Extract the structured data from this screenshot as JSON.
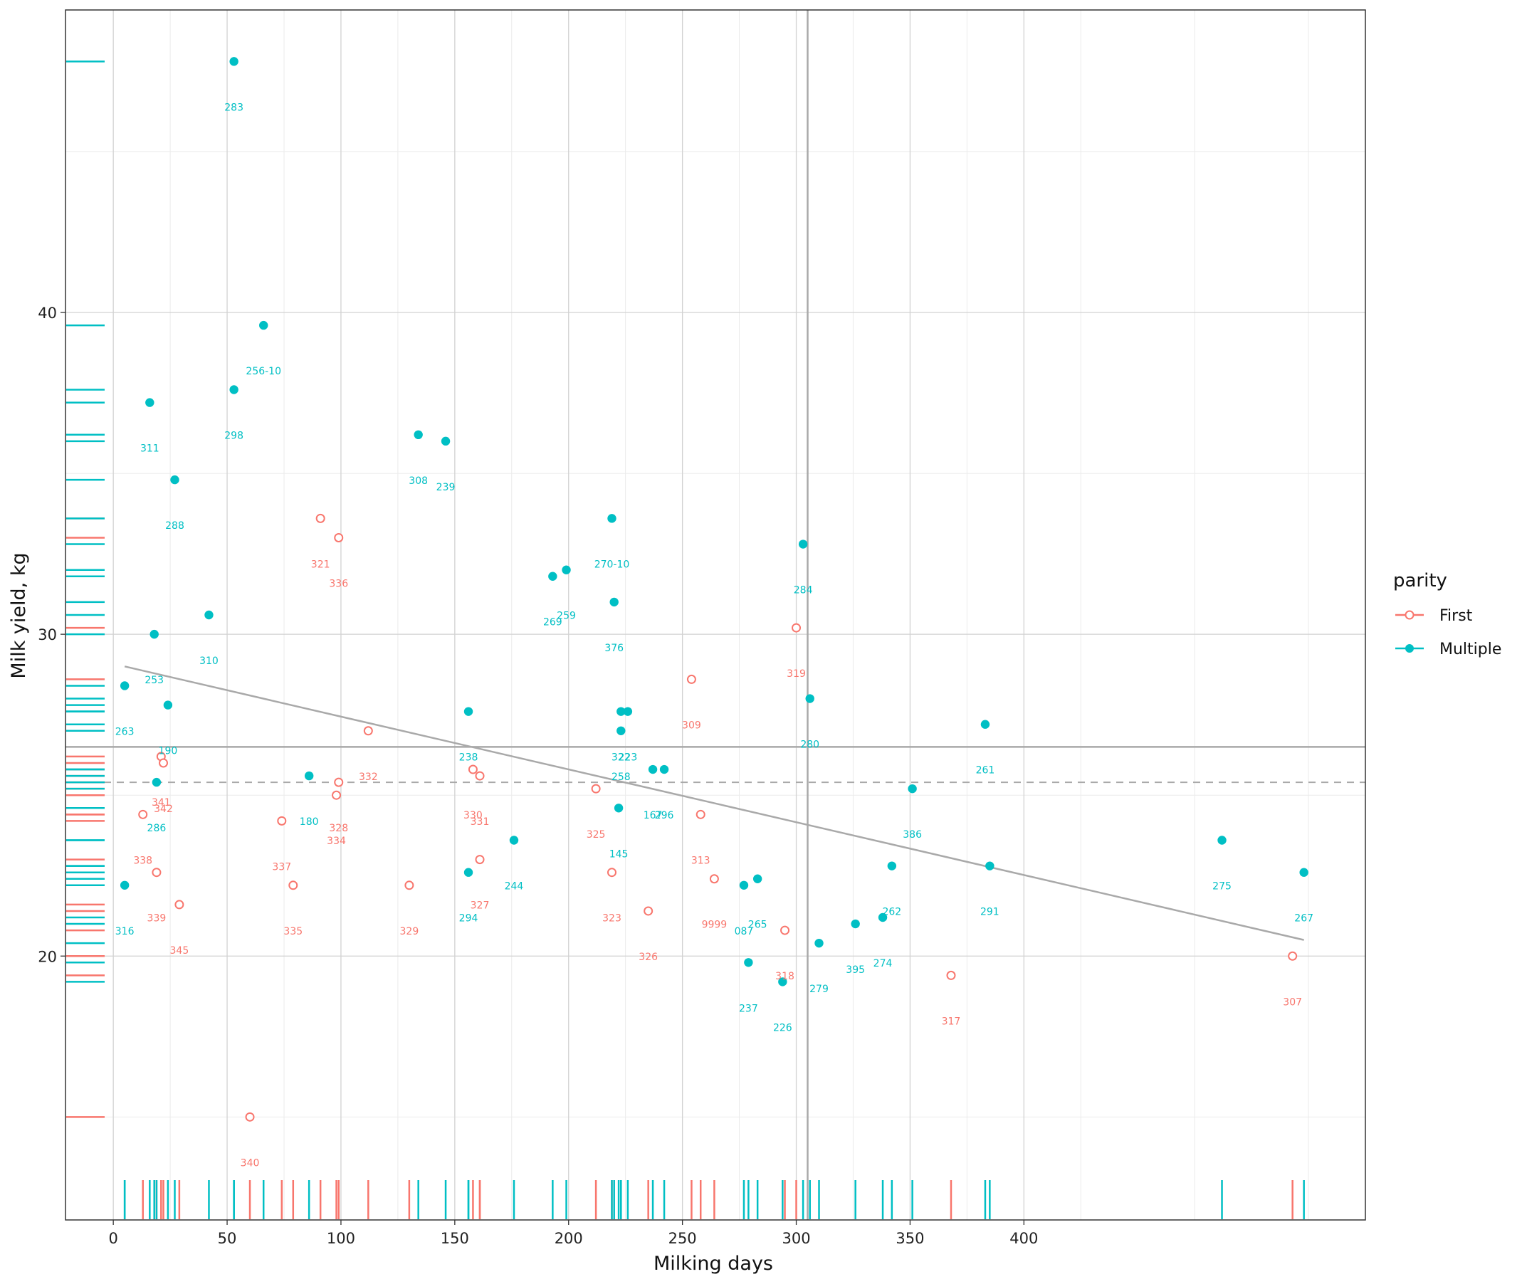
{
  "chart_data": {
    "type": "scatter",
    "xlabel": "Milking days",
    "ylabel": "Milk yield, kg",
    "xlim": [
      -21,
      550
    ],
    "ylim": [
      11.8,
      49.4
    ],
    "x_ticks": [
      0,
      50,
      100,
      150,
      200,
      250,
      300,
      350,
      400
    ],
    "y_ticks": [
      20,
      30,
      40
    ],
    "grid": true,
    "legend": {
      "title": "parity",
      "position": "right",
      "entries": [
        {
          "name": "First",
          "color": "#F8766D",
          "marker": "open-circle"
        },
        {
          "name": "Multiple",
          "color": "#00BFC4",
          "marker": "filled-circle"
        }
      ]
    },
    "reference_lines": {
      "vertical_x": 305,
      "horizontal_solid_y": 26.5,
      "horizontal_dashed_y": 25.4
    },
    "trend_line": {
      "x1": 5,
      "y1": 29.0,
      "x2": 523,
      "y2": 20.5
    },
    "series": [
      {
        "name": "First",
        "points": [
          {
            "x": 60,
            "y": 15.0,
            "label": "340"
          },
          {
            "x": 91,
            "y": 33.6,
            "label": "321"
          },
          {
            "x": 99,
            "y": 33.0,
            "label": "336"
          },
          {
            "x": 112,
            "y": 27.0,
            "label": "332"
          },
          {
            "x": 21,
            "y": 26.2,
            "label": "341"
          },
          {
            "x": 22,
            "y": 26.0,
            "label": "342"
          },
          {
            "x": 99,
            "y": 25.4,
            "label": "328"
          },
          {
            "x": 98,
            "y": 25.0,
            "label": "334"
          },
          {
            "x": 158,
            "y": 25.8,
            "label": "330"
          },
          {
            "x": 161,
            "y": 25.6,
            "label": "331"
          },
          {
            "x": 74,
            "y": 24.2,
            "label": "337"
          },
          {
            "x": 13,
            "y": 24.4,
            "label": "338"
          },
          {
            "x": 19,
            "y": 22.6,
            "label": "339"
          },
          {
            "x": 29,
            "y": 21.6,
            "label": "345"
          },
          {
            "x": 79,
            "y": 22.2,
            "label": "335"
          },
          {
            "x": 130,
            "y": 22.2,
            "label": "329"
          },
          {
            "x": 161,
            "y": 23.0,
            "label": "327"
          },
          {
            "x": 212,
            "y": 25.2,
            "label": "325"
          },
          {
            "x": 219,
            "y": 22.6,
            "label": "323"
          },
          {
            "x": 235,
            "y": 21.4,
            "label": "326"
          },
          {
            "x": 254,
            "y": 28.6,
            "label": "309"
          },
          {
            "x": 258,
            "y": 24.4,
            "label": "313"
          },
          {
            "x": 264,
            "y": 22.4,
            "label": "9999"
          },
          {
            "x": 295,
            "y": 20.8,
            "label": "318"
          },
          {
            "x": 300,
            "y": 30.2,
            "label": "319"
          },
          {
            "x": 368,
            "y": 19.4,
            "label": "317"
          },
          {
            "x": 518,
            "y": 20.0,
            "label": "307"
          }
        ]
      },
      {
        "name": "Multiple",
        "points": [
          {
            "x": 53,
            "y": 47.8,
            "label": "283"
          },
          {
            "x": 66,
            "y": 39.6,
            "label": "256-10"
          },
          {
            "x": 53,
            "y": 37.6,
            "label": "298"
          },
          {
            "x": 16,
            "y": 37.2,
            "label": "311"
          },
          {
            "x": 134,
            "y": 36.2,
            "label": "308"
          },
          {
            "x": 146,
            "y": 36.0,
            "label": "239"
          },
          {
            "x": 27,
            "y": 34.8,
            "label": "288"
          },
          {
            "x": 219,
            "y": 33.6,
            "label": "270-10"
          },
          {
            "x": 303,
            "y": 32.8,
            "label": "284"
          },
          {
            "x": 199,
            "y": 32.0,
            "label": "259"
          },
          {
            "x": 193,
            "y": 31.8,
            "label": "269"
          },
          {
            "x": 220,
            "y": 31.0,
            "label": "376"
          },
          {
            "x": 42,
            "y": 30.6,
            "label": "310"
          },
          {
            "x": 18,
            "y": 30.0,
            "label": "253"
          },
          {
            "x": 5,
            "y": 28.4,
            "label": "263"
          },
          {
            "x": 24,
            "y": 27.8,
            "label": "190"
          },
          {
            "x": 306,
            "y": 28.0,
            "label": "280"
          },
          {
            "x": 156,
            "y": 27.6,
            "label": "238"
          },
          {
            "x": 223,
            "y": 27.6,
            "label": "322"
          },
          {
            "x": 226,
            "y": 27.6,
            "label": "223"
          },
          {
            "x": 223,
            "y": 27.0,
            "label": "258"
          },
          {
            "x": 383,
            "y": 27.2,
            "label": "261"
          },
          {
            "x": 237,
            "y": 25.8,
            "label": "167"
          },
          {
            "x": 242,
            "y": 25.8,
            "label": "296"
          },
          {
            "x": 19,
            "y": 25.4,
            "label": "286"
          },
          {
            "x": 86,
            "y": 25.6,
            "label": "180"
          },
          {
            "x": 222,
            "y": 24.6,
            "label": "145"
          },
          {
            "x": 351,
            "y": 25.2,
            "label": "386"
          },
          {
            "x": 176,
            "y": 23.6,
            "label": "244"
          },
          {
            "x": 156,
            "y": 22.6,
            "label": "294"
          },
          {
            "x": 5,
            "y": 22.2,
            "label": "316"
          },
          {
            "x": 277,
            "y": 22.2,
            "label": "087"
          },
          {
            "x": 283,
            "y": 22.4,
            "label": "265"
          },
          {
            "x": 342,
            "y": 22.8,
            "label": "262"
          },
          {
            "x": 385,
            "y": 22.8,
            "label": "291"
          },
          {
            "x": 338,
            "y": 21.2,
            "label": "274"
          },
          {
            "x": 326,
            "y": 21.0,
            "label": "395"
          },
          {
            "x": 310,
            "y": 20.4,
            "label": "279"
          },
          {
            "x": 279,
            "y": 19.8,
            "label": "237"
          },
          {
            "x": 294,
            "y": 19.2,
            "label": "226"
          },
          {
            "x": 487,
            "y": 23.6,
            "label": "275"
          },
          {
            "x": 523,
            "y": 22.6,
            "label": "267"
          }
        ]
      }
    ]
  }
}
